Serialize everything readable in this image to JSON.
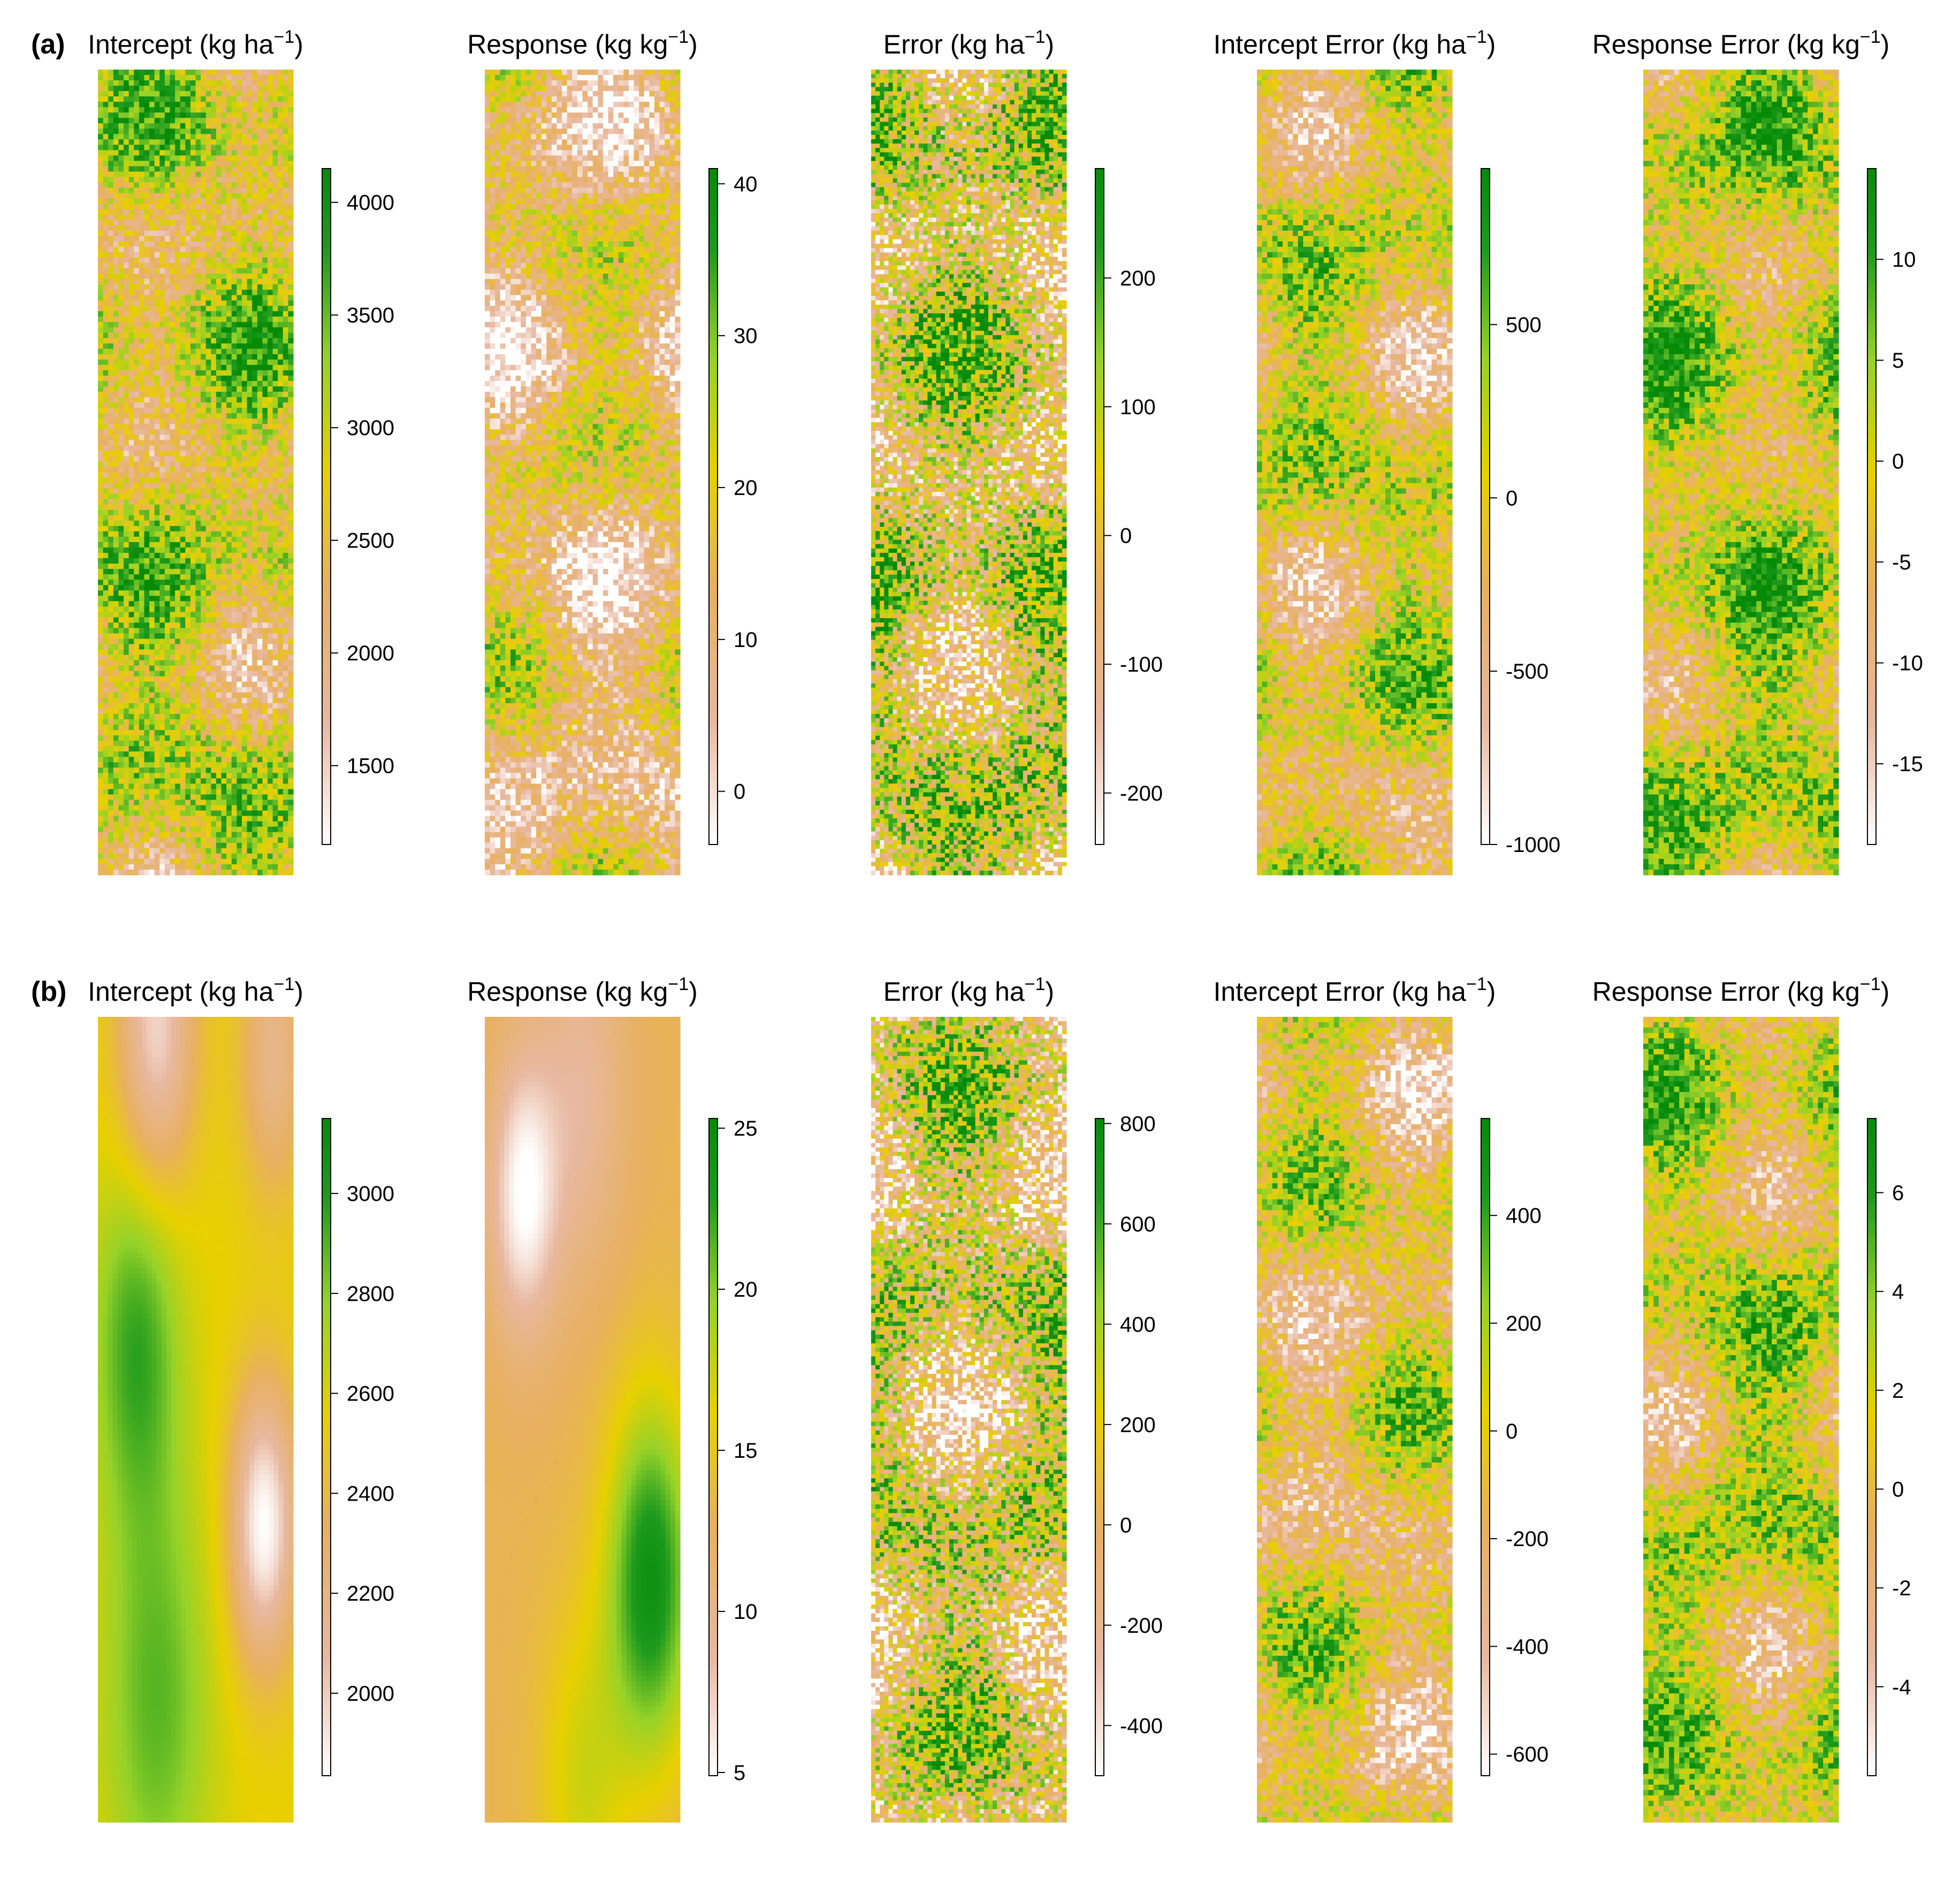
{
  "figure": {
    "rows": [
      {
        "label": "(a)",
        "panels": [
          {
            "title": "Intercept",
            "unit": "(kg ha",
            "exp": "−1",
            "close": ")",
            "ticks": [
              1500,
              2000,
              2500,
              3000,
              3500,
              4000
            ],
            "range": [
              1150,
              4150
            ]
          },
          {
            "title": "Response",
            "unit": "(kg kg",
            "exp": "−1",
            "close": ")",
            "ticks": [
              0,
              10,
              20,
              30,
              40
            ],
            "range": [
              -3.5,
              41
            ]
          },
          {
            "title": "Error",
            "unit": "(kg ha",
            "exp": "−1",
            "close": ")",
            "ticks": [
              -200,
              -100,
              0,
              100,
              200
            ],
            "range": [
              -240,
              285
            ]
          },
          {
            "title": "Intercept Error",
            "unit": "(kg ha",
            "exp": "−1",
            "close": ")",
            "ticks": [
              -1000,
              -500,
              0,
              500
            ],
            "range": [
              -1000,
              950
            ]
          },
          {
            "title": "Response Error",
            "unit": "(kg kg",
            "exp": "−1",
            "close": ")",
            "ticks": [
              -15,
              -10,
              -5,
              0,
              5,
              10
            ],
            "range": [
              -19,
              14.5
            ]
          }
        ]
      },
      {
        "label": "(b)",
        "panels": [
          {
            "title": "Intercept",
            "unit": "(kg ha",
            "exp": "−1",
            "close": ")",
            "ticks": [
              2000,
              2200,
              2400,
              2600,
              2800,
              3000
            ],
            "range": [
              1835,
              3150
            ]
          },
          {
            "title": "Response",
            "unit": "(kg kg",
            "exp": "−1",
            "close": ")",
            "ticks": [
              5,
              10,
              15,
              20,
              25
            ],
            "range": [
              4.9,
              25.3
            ]
          },
          {
            "title": "Error",
            "unit": "(kg ha",
            "exp": "−1",
            "close": ")",
            "ticks": [
              -400,
              -200,
              0,
              200,
              400,
              600,
              800
            ],
            "range": [
              -500,
              810
            ]
          },
          {
            "title": "Intercept Error",
            "unit": "(kg ha",
            "exp": "−1",
            "close": ")",
            "ticks": [
              -600,
              -400,
              -200,
              0,
              200,
              400
            ],
            "range": [
              -640,
              580
            ]
          },
          {
            "title": "Response Error",
            "unit": "(kg kg",
            "exp": "−1",
            "close": ")",
            "ticks": [
              -4,
              -2,
              0,
              2,
              4,
              6
            ],
            "range": [
              -5.8,
              7.5
            ]
          }
        ]
      }
    ]
  },
  "colors": {
    "low": "#ffffff",
    "mid_low": "#e8b8a0",
    "mid": "#e8d000",
    "high": "#1e9a1e",
    "top": "#078b07"
  },
  "chart_data": [
    {
      "type": "heatmap",
      "title": "(a) Intercept (kg ha−1)",
      "colorbar_ticks": [
        1500,
        2000,
        2500,
        3000,
        3500,
        4000
      ],
      "colorbar_range": [
        1150,
        4150
      ]
    },
    {
      "type": "heatmap",
      "title": "(a) Response (kg kg−1)",
      "colorbar_ticks": [
        0,
        10,
        20,
        30,
        40
      ],
      "colorbar_range": [
        -3.5,
        41
      ]
    },
    {
      "type": "heatmap",
      "title": "(a) Error (kg ha−1)",
      "colorbar_ticks": [
        -200,
        -100,
        0,
        100,
        200
      ],
      "colorbar_range": [
        -240,
        285
      ]
    },
    {
      "type": "heatmap",
      "title": "(a) Intercept Error (kg ha−1)",
      "colorbar_ticks": [
        -1000,
        -500,
        0,
        500
      ],
      "colorbar_range": [
        -1000,
        950
      ]
    },
    {
      "type": "heatmap",
      "title": "(a) Response Error (kg kg−1)",
      "colorbar_ticks": [
        -15,
        -10,
        -5,
        0,
        5,
        10
      ],
      "colorbar_range": [
        -19,
        14.5
      ]
    },
    {
      "type": "heatmap",
      "title": "(b) Intercept (kg ha−1)",
      "colorbar_ticks": [
        2000,
        2200,
        2400,
        2600,
        2800,
        3000
      ],
      "colorbar_range": [
        1835,
        3150
      ]
    },
    {
      "type": "heatmap",
      "title": "(b) Response (kg kg−1)",
      "colorbar_ticks": [
        5,
        10,
        15,
        20,
        25
      ],
      "colorbar_range": [
        4.9,
        25.3
      ]
    },
    {
      "type": "heatmap",
      "title": "(b) Error (kg ha−1)",
      "colorbar_ticks": [
        -400,
        -200,
        0,
        200,
        400,
        600,
        800
      ],
      "colorbar_range": [
        -500,
        810
      ]
    },
    {
      "type": "heatmap",
      "title": "(b) Intercept Error (kg ha−1)",
      "colorbar_ticks": [
        -600,
        -400,
        -200,
        0,
        200,
        400
      ],
      "colorbar_range": [
        -640,
        580
      ]
    },
    {
      "type": "heatmap",
      "title": "(b) Response Error (kg kg−1)",
      "colorbar_ticks": [
        -4,
        -2,
        0,
        2,
        4,
        6
      ],
      "colorbar_range": [
        -5.8,
        7.5
      ]
    }
  ]
}
